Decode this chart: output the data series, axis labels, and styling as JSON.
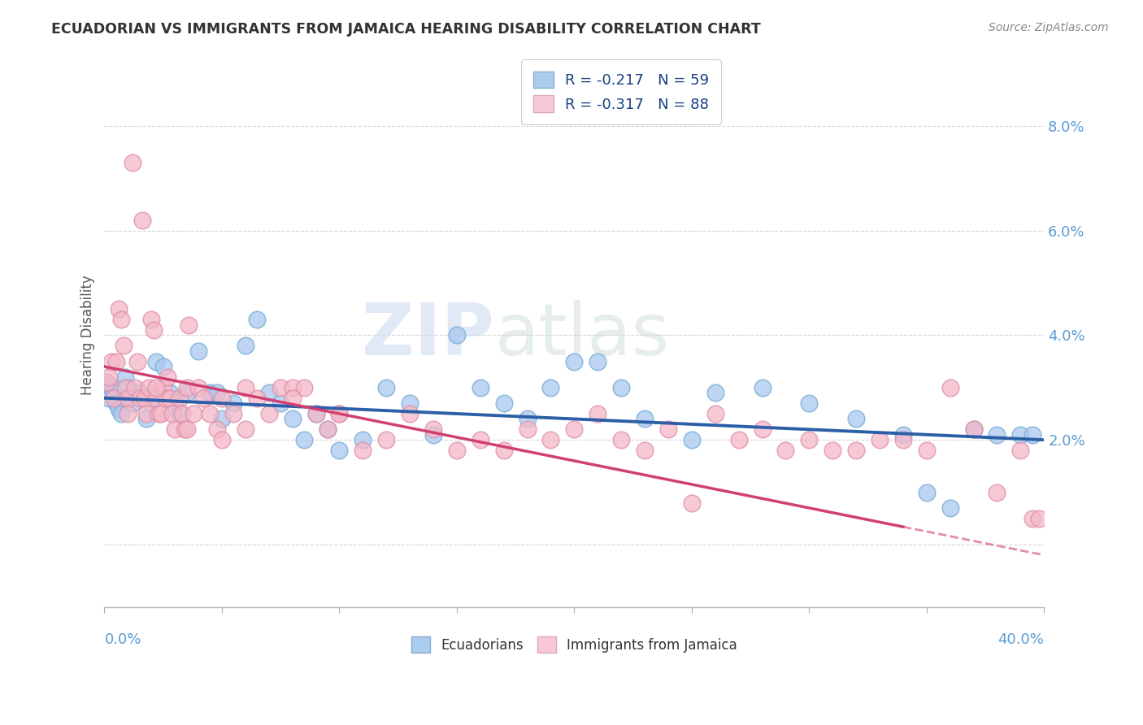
{
  "title": "ECUADORIAN VS IMMIGRANTS FROM JAMAICA HEARING DISABILITY CORRELATION CHART",
  "source": "Source: ZipAtlas.com",
  "xmin": 0.0,
  "xmax": 0.4,
  "ymin": -0.012,
  "ymax": 0.092,
  "watermark_zip": "ZIP",
  "watermark_atlas": "atlas",
  "legend_blue_r": "R = -0.217",
  "legend_blue_n": "N = 59",
  "legend_pink_r": "R = -0.317",
  "legend_pink_n": "N = 88",
  "blue_scatter_color": "#a8c8f0",
  "blue_edge_color": "#7aadd4",
  "pink_scatter_color": "#f4b8c8",
  "pink_edge_color": "#e090a8",
  "blue_line_color": "#2c5fa8",
  "pink_line_color": "#d04070",
  "axis_label_color": "#5b9bd5",
  "title_color": "#333333",
  "grid_color": "#cccccc",
  "blue_line_x0": 0.0,
  "blue_line_y0": 0.028,
  "blue_line_x1": 0.4,
  "blue_line_y1": 0.02,
  "pink_line_x0": 0.0,
  "pink_line_y0": 0.034,
  "pink_line_x1": 0.4,
  "pink_line_y1": -0.002,
  "blue_scatter": [
    [
      0.001,
      0.031
    ],
    [
      0.002,
      0.028
    ],
    [
      0.003,
      0.03
    ],
    [
      0.004,
      0.029
    ],
    [
      0.005,
      0.027
    ],
    [
      0.006,
      0.026
    ],
    [
      0.007,
      0.025
    ],
    [
      0.008,
      0.028
    ],
    [
      0.009,
      0.032
    ],
    [
      0.01,
      0.03
    ],
    [
      0.012,
      0.027
    ],
    [
      0.015,
      0.029
    ],
    [
      0.018,
      0.024
    ],
    [
      0.02,
      0.027
    ],
    [
      0.022,
      0.035
    ],
    [
      0.025,
      0.034
    ],
    [
      0.028,
      0.029
    ],
    [
      0.03,
      0.027
    ],
    [
      0.032,
      0.025
    ],
    [
      0.035,
      0.029
    ],
    [
      0.04,
      0.037
    ],
    [
      0.045,
      0.029
    ],
    [
      0.048,
      0.029
    ],
    [
      0.05,
      0.024
    ],
    [
      0.055,
      0.027
    ],
    [
      0.06,
      0.038
    ],
    [
      0.065,
      0.043
    ],
    [
      0.07,
      0.029
    ],
    [
      0.075,
      0.027
    ],
    [
      0.08,
      0.024
    ],
    [
      0.085,
      0.02
    ],
    [
      0.09,
      0.025
    ],
    [
      0.095,
      0.022
    ],
    [
      0.1,
      0.018
    ],
    [
      0.11,
      0.02
    ],
    [
      0.12,
      0.03
    ],
    [
      0.13,
      0.027
    ],
    [
      0.14,
      0.021
    ],
    [
      0.15,
      0.04
    ],
    [
      0.16,
      0.03
    ],
    [
      0.17,
      0.027
    ],
    [
      0.18,
      0.024
    ],
    [
      0.19,
      0.03
    ],
    [
      0.2,
      0.035
    ],
    [
      0.21,
      0.035
    ],
    [
      0.22,
      0.03
    ],
    [
      0.23,
      0.024
    ],
    [
      0.25,
      0.02
    ],
    [
      0.26,
      0.029
    ],
    [
      0.28,
      0.03
    ],
    [
      0.3,
      0.027
    ],
    [
      0.32,
      0.024
    ],
    [
      0.34,
      0.021
    ],
    [
      0.35,
      0.01
    ],
    [
      0.36,
      0.007
    ],
    [
      0.37,
      0.022
    ],
    [
      0.38,
      0.021
    ],
    [
      0.39,
      0.021
    ],
    [
      0.395,
      0.021
    ]
  ],
  "pink_scatter": [
    [
      0.001,
      0.031
    ],
    [
      0.002,
      0.032
    ],
    [
      0.003,
      0.035
    ],
    [
      0.004,
      0.028
    ],
    [
      0.005,
      0.035
    ],
    [
      0.006,
      0.045
    ],
    [
      0.007,
      0.043
    ],
    [
      0.008,
      0.038
    ],
    [
      0.009,
      0.03
    ],
    [
      0.01,
      0.028
    ],
    [
      0.012,
      0.073
    ],
    [
      0.013,
      0.03
    ],
    [
      0.014,
      0.035
    ],
    [
      0.015,
      0.028
    ],
    [
      0.016,
      0.062
    ],
    [
      0.017,
      0.028
    ],
    [
      0.018,
      0.025
    ],
    [
      0.019,
      0.03
    ],
    [
      0.02,
      0.043
    ],
    [
      0.021,
      0.041
    ],
    [
      0.022,
      0.028
    ],
    [
      0.023,
      0.025
    ],
    [
      0.024,
      0.025
    ],
    [
      0.025,
      0.03
    ],
    [
      0.026,
      0.028
    ],
    [
      0.027,
      0.032
    ],
    [
      0.028,
      0.028
    ],
    [
      0.029,
      0.025
    ],
    [
      0.03,
      0.022
    ],
    [
      0.032,
      0.028
    ],
    [
      0.033,
      0.025
    ],
    [
      0.034,
      0.022
    ],
    [
      0.035,
      0.03
    ],
    [
      0.036,
      0.042
    ],
    [
      0.038,
      0.025
    ],
    [
      0.04,
      0.03
    ],
    [
      0.042,
      0.028
    ],
    [
      0.045,
      0.025
    ],
    [
      0.048,
      0.022
    ],
    [
      0.05,
      0.028
    ],
    [
      0.055,
      0.025
    ],
    [
      0.06,
      0.022
    ],
    [
      0.065,
      0.028
    ],
    [
      0.07,
      0.025
    ],
    [
      0.075,
      0.03
    ],
    [
      0.08,
      0.03
    ],
    [
      0.085,
      0.03
    ],
    [
      0.09,
      0.025
    ],
    [
      0.095,
      0.022
    ],
    [
      0.1,
      0.025
    ],
    [
      0.11,
      0.018
    ],
    [
      0.12,
      0.02
    ],
    [
      0.13,
      0.025
    ],
    [
      0.14,
      0.022
    ],
    [
      0.15,
      0.018
    ],
    [
      0.16,
      0.02
    ],
    [
      0.17,
      0.018
    ],
    [
      0.18,
      0.022
    ],
    [
      0.19,
      0.02
    ],
    [
      0.2,
      0.022
    ],
    [
      0.21,
      0.025
    ],
    [
      0.22,
      0.02
    ],
    [
      0.23,
      0.018
    ],
    [
      0.24,
      0.022
    ],
    [
      0.25,
      0.008
    ],
    [
      0.26,
      0.025
    ],
    [
      0.27,
      0.02
    ],
    [
      0.28,
      0.022
    ],
    [
      0.29,
      0.018
    ],
    [
      0.3,
      0.02
    ],
    [
      0.31,
      0.018
    ],
    [
      0.32,
      0.018
    ],
    [
      0.33,
      0.02
    ],
    [
      0.34,
      0.02
    ],
    [
      0.35,
      0.018
    ],
    [
      0.36,
      0.03
    ],
    [
      0.37,
      0.022
    ],
    [
      0.38,
      0.01
    ],
    [
      0.39,
      0.018
    ],
    [
      0.395,
      0.005
    ],
    [
      0.398,
      0.005
    ],
    [
      0.01,
      0.025
    ],
    [
      0.022,
      0.03
    ],
    [
      0.035,
      0.022
    ],
    [
      0.05,
      0.02
    ],
    [
      0.06,
      0.03
    ],
    [
      0.08,
      0.028
    ],
    [
      0.1,
      0.025
    ]
  ]
}
